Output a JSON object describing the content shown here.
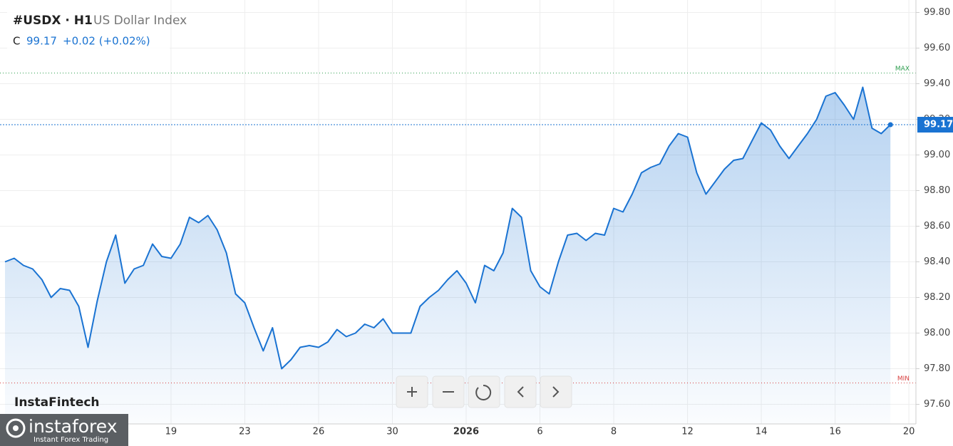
{
  "chart_data": {
    "type": "line",
    "title": "#USDX · H1",
    "subtitle": "US Dollar Index",
    "close_prefix": "C",
    "close": 99.17,
    "change": "+0.02 (+0.02%)",
    "categories": [
      null,
      null,
      null,
      null,
      null,
      null,
      null,
      null,
      null,
      null,
      null,
      null,
      null,
      null,
      null,
      null,
      null,
      null,
      "19",
      null,
      null,
      null,
      null,
      null,
      null,
      null,
      "23",
      null,
      null,
      null,
      null,
      null,
      null,
      null,
      "26",
      null,
      null,
      null,
      null,
      null,
      null,
      null,
      "30",
      null,
      null,
      null,
      null,
      null,
      null,
      null,
      "2026",
      null,
      null,
      null,
      null,
      null,
      null,
      null,
      "6",
      null,
      null,
      null,
      null,
      null,
      null,
      null,
      "8",
      null,
      null,
      null,
      null,
      null,
      null,
      null,
      "12",
      null,
      null,
      null,
      null,
      null,
      null,
      null,
      "14",
      null,
      null,
      null,
      null,
      null,
      null,
      null,
      "16",
      null,
      null,
      null,
      null,
      null,
      null,
      null,
      "20"
    ],
    "series": [
      {
        "name": "USDX",
        "color": "#1a73d2",
        "values": [
          98.4,
          98.42,
          98.38,
          98.36,
          98.3,
          98.2,
          98.25,
          98.24,
          98.15,
          97.92,
          98.18,
          98.4,
          98.55,
          98.28,
          98.36,
          98.38,
          98.5,
          98.43,
          98.42,
          98.5,
          98.65,
          98.62,
          98.66,
          98.58,
          98.45,
          98.22,
          98.17,
          98.03,
          97.9,
          98.03,
          97.8,
          97.85,
          97.92,
          97.93,
          97.92,
          97.95,
          98.02,
          97.98,
          98.0,
          98.05,
          98.03,
          98.08,
          98.0,
          98.0,
          98.0,
          98.15,
          98.2,
          98.24,
          98.3,
          98.35,
          98.28,
          98.17,
          98.38,
          98.35,
          98.45,
          98.7,
          98.65,
          98.35,
          98.26,
          98.22,
          98.4,
          98.55,
          98.56,
          98.52,
          98.56,
          98.55,
          98.7,
          98.68,
          98.78,
          98.9,
          98.93,
          98.95,
          99.05,
          99.12,
          99.1,
          98.9,
          98.78,
          98.85,
          98.92,
          98.97,
          98.98,
          99.08,
          99.18,
          99.14,
          99.05,
          98.98,
          99.05,
          99.12,
          99.2,
          99.33,
          99.35,
          99.28,
          99.2,
          99.38,
          99.15,
          99.12,
          99.17,
          null,
          null
        ]
      }
    ],
    "ylim": [
      97.51,
      99.87
    ],
    "yticks": [
      {
        "value": 97.6,
        "label": "97.60"
      },
      {
        "value": 97.8,
        "label": "97.80"
      },
      {
        "value": 98.0,
        "label": "98.00"
      },
      {
        "value": 98.2,
        "label": "98.20"
      },
      {
        "value": 98.4,
        "label": "98.40"
      },
      {
        "value": 98.6,
        "label": "98.60"
      },
      {
        "value": 98.8,
        "label": "98.80"
      },
      {
        "value": 99.0,
        "label": "99.00"
      },
      {
        "value": 99.2,
        "label": "99.20"
      },
      {
        "value": 99.4,
        "label": "99.40"
      },
      {
        "value": 99.6,
        "label": "99.60"
      },
      {
        "value": 99.8,
        "label": "99.80"
      }
    ],
    "max_line": {
      "label": "MAX",
      "value": 99.46
    },
    "min_line": {
      "label": "MIN",
      "value": 97.72
    },
    "grid": true
  },
  "watermark": {
    "chart_brand": "InstaFintech",
    "logo": "instaforex",
    "tagline": "Instant Forex Trading"
  }
}
